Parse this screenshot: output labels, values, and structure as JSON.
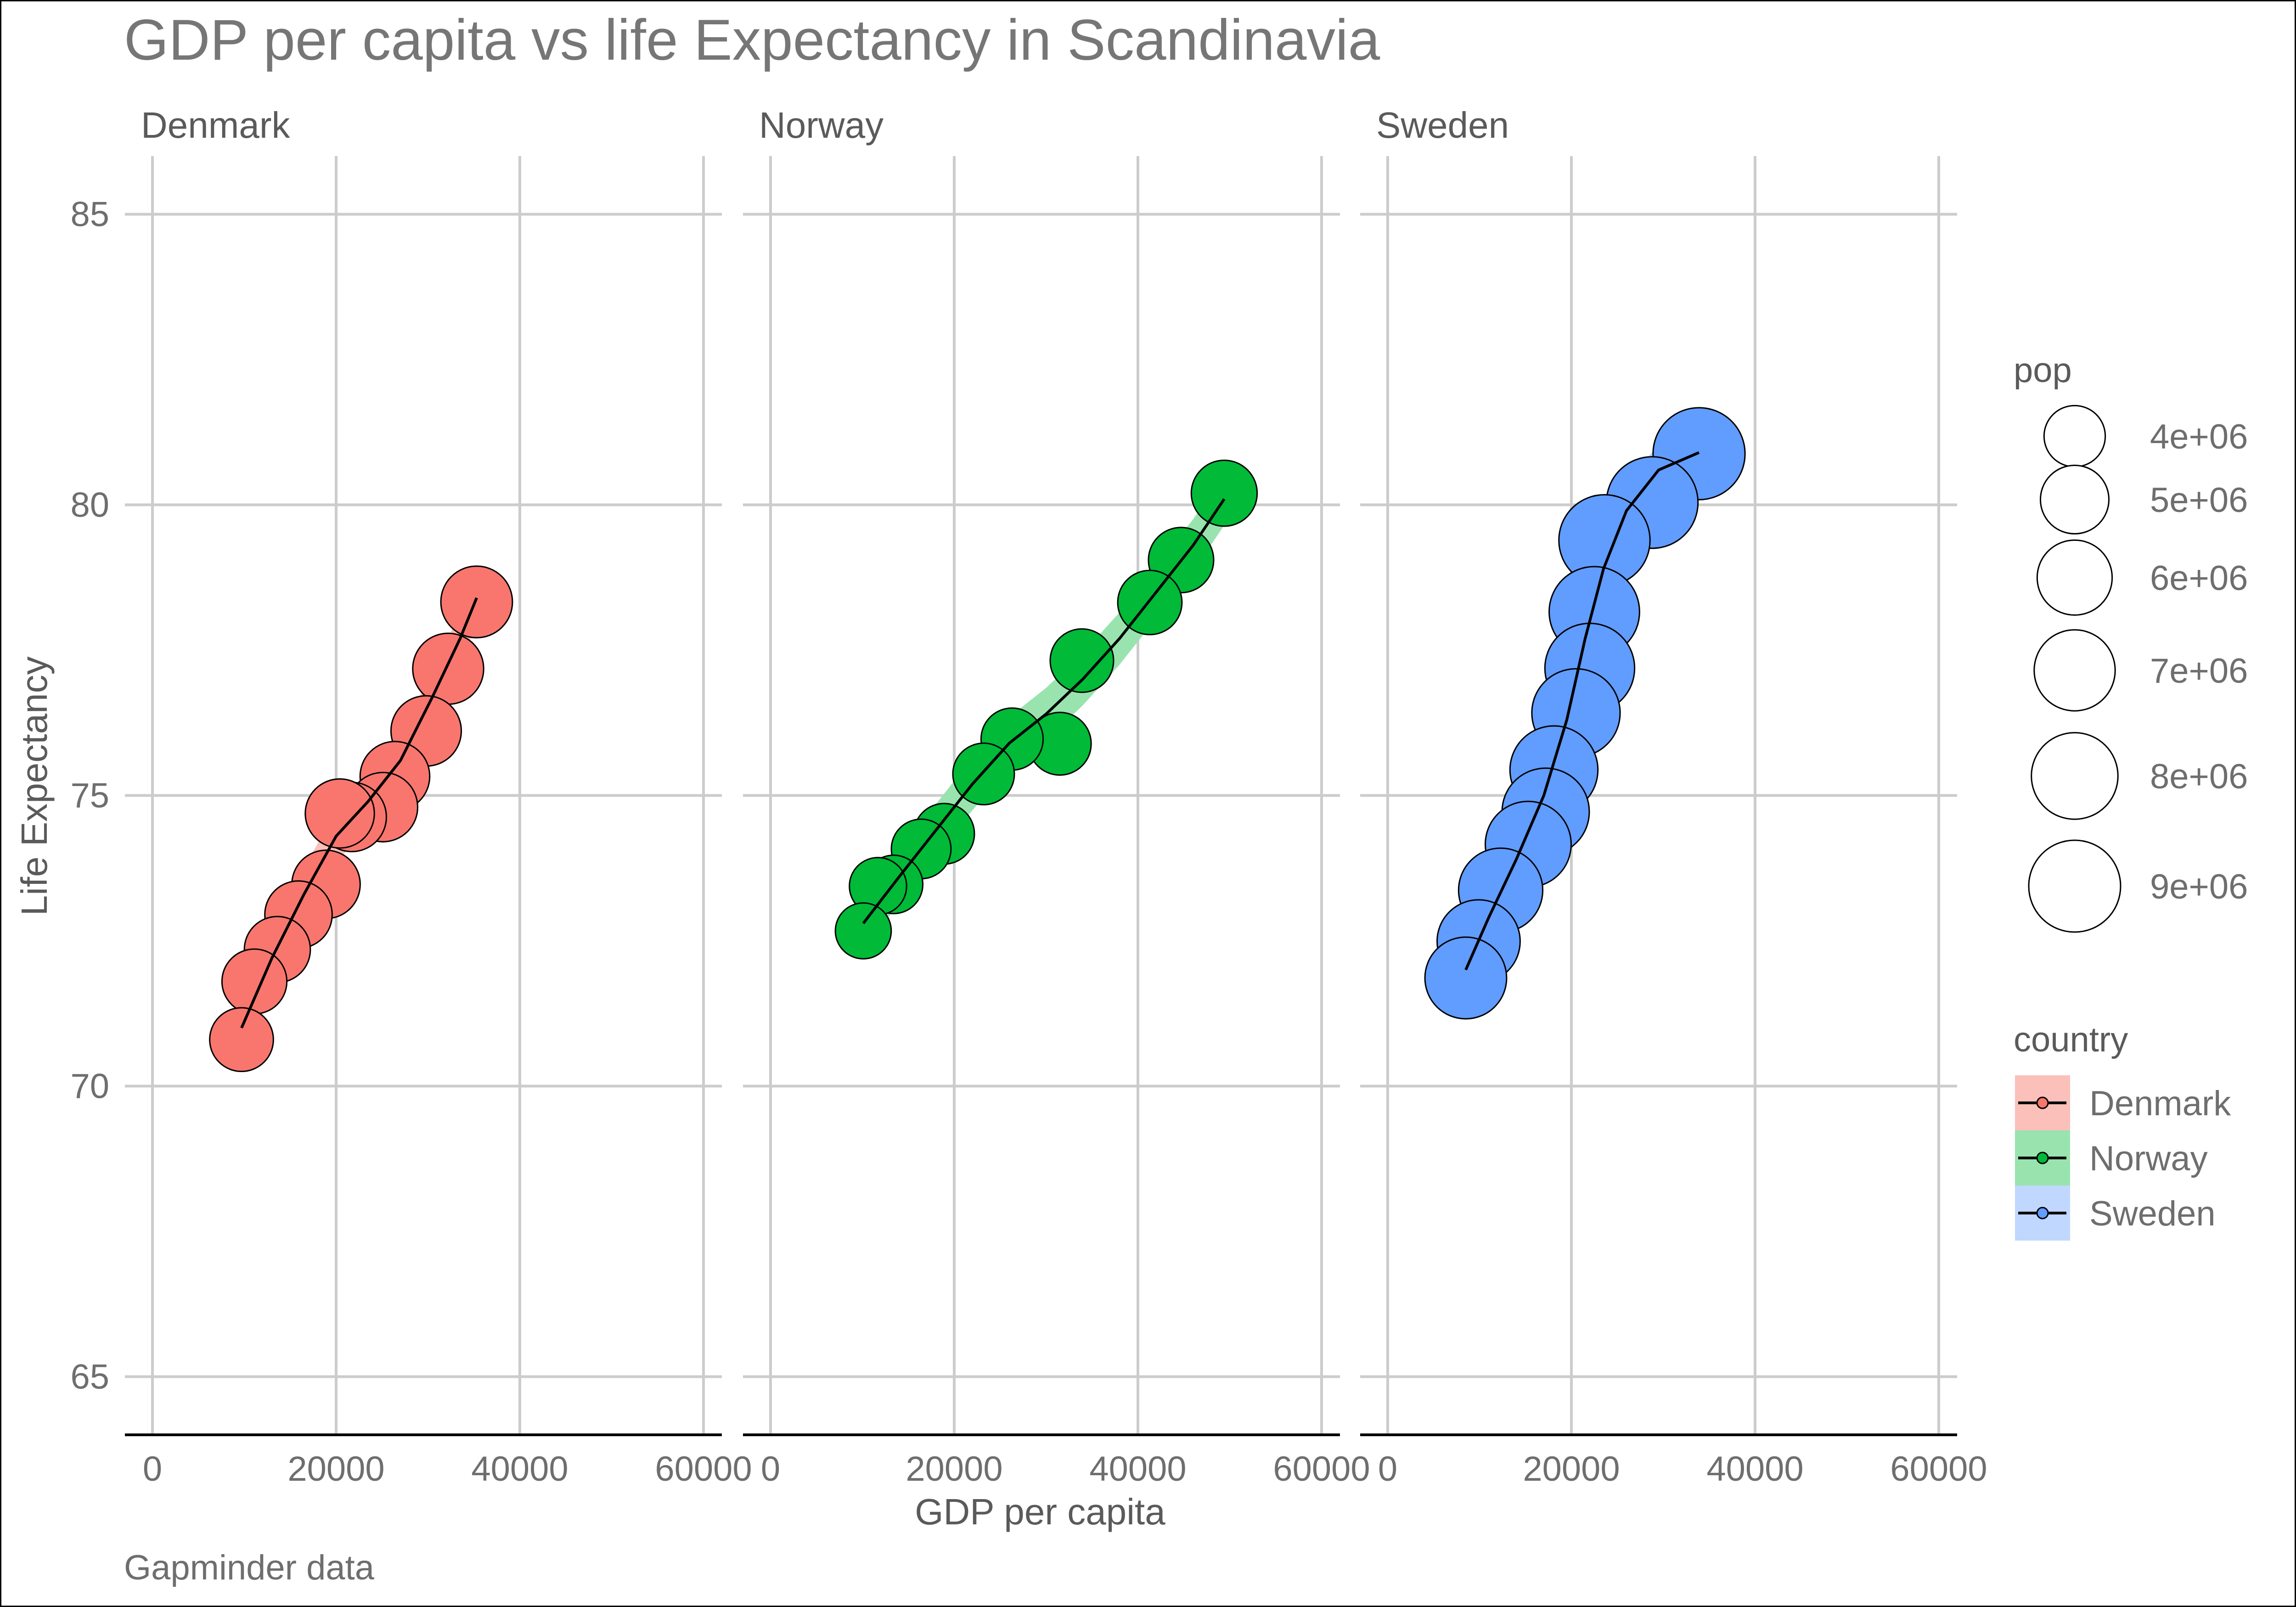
{
  "chart_data": {
    "type": "scatter",
    "title": "GDP per capita  vs life Expectancy in Scandinavia",
    "xlabel": "GDP per capita",
    "ylabel": "Life Expectancy",
    "caption": "Gapminder data",
    "xlim": [
      -3000,
      62000
    ],
    "ylim": [
      64,
      86
    ],
    "x_ticks": [
      "0",
      "20000",
      "40000",
      "60000"
    ],
    "y_ticks": [
      "65",
      "70",
      "75",
      "80",
      "85"
    ],
    "x_tick_values": [
      0,
      20000,
      40000,
      60000
    ],
    "y_tick_values": [
      65,
      70,
      75,
      80,
      85
    ],
    "grid": true,
    "facets": [
      {
        "name": "Denmark",
        "color": "#F8766D",
        "band_color": "#FBC0BA",
        "points": [
          {
            "x": 9700,
            "y": 70.8,
            "pop": 4330000.0
          },
          {
            "x": 11100,
            "y": 71.8,
            "pop": 4490000.0
          },
          {
            "x": 13600,
            "y": 72.35,
            "pop": 4650000.0
          },
          {
            "x": 15900,
            "y": 72.95,
            "pop": 4840000.0
          },
          {
            "x": 18900,
            "y": 73.47,
            "pop": 4980000.0
          },
          {
            "x": 20400,
            "y": 74.69,
            "pop": 5090000.0
          },
          {
            "x": 21700,
            "y": 74.63,
            "pop": 5120000.0
          },
          {
            "x": 25100,
            "y": 74.8,
            "pop": 5130000.0
          },
          {
            "x": 26400,
            "y": 75.33,
            "pop": 5170000.0
          },
          {
            "x": 29800,
            "y": 76.11,
            "pop": 5280000.0
          },
          {
            "x": 32200,
            "y": 77.18,
            "pop": 5370000.0
          },
          {
            "x": 35300,
            "y": 78.33,
            "pop": 5470000.0
          }
        ],
        "smooth": [
          [
            9700,
            71.0
          ],
          [
            13000,
            72.2
          ],
          [
            16500,
            73.3
          ],
          [
            20000,
            74.3
          ],
          [
            23500,
            74.9
          ],
          [
            27000,
            75.6
          ],
          [
            30500,
            76.7
          ],
          [
            33500,
            77.7
          ],
          [
            35300,
            78.4
          ]
        ]
      },
      {
        "name": "Norway",
        "color": "#00BA38",
        "band_color": "#99E3AF",
        "points": [
          {
            "x": 10100,
            "y": 72.67,
            "pop": 3330000.0
          },
          {
            "x": 11700,
            "y": 73.44,
            "pop": 3490000.0
          },
          {
            "x": 13400,
            "y": 73.47,
            "pop": 3640000.0
          },
          {
            "x": 16400,
            "y": 74.08,
            "pop": 3790000.0
          },
          {
            "x": 18900,
            "y": 74.34,
            "pop": 3920000.0
          },
          {
            "x": 23200,
            "y": 75.37,
            "pop": 4040000.0
          },
          {
            "x": 26300,
            "y": 75.97,
            "pop": 4110000.0
          },
          {
            "x": 31500,
            "y": 75.89,
            "pop": 4190000.0
          },
          {
            "x": 33900,
            "y": 77.32,
            "pop": 4290000.0
          },
          {
            "x": 41300,
            "y": 78.32,
            "pop": 4400000.0
          },
          {
            "x": 44700,
            "y": 79.05,
            "pop": 4540000.0
          },
          {
            "x": 49400,
            "y": 80.2,
            "pop": 4630000.0
          }
        ],
        "smooth": [
          [
            10100,
            72.8
          ],
          [
            14000,
            73.6
          ],
          [
            18000,
            74.4
          ],
          [
            22000,
            75.2
          ],
          [
            26000,
            75.9
          ],
          [
            30000,
            76.4
          ],
          [
            34000,
            77.0
          ],
          [
            38000,
            77.7
          ],
          [
            42000,
            78.5
          ],
          [
            46000,
            79.3
          ],
          [
            49400,
            80.1
          ]
        ]
      },
      {
        "name": "Sweden",
        "color": "#619CFF",
        "band_color": "#C0D7FF",
        "points": [
          {
            "x": 8500,
            "y": 71.86,
            "pop": 7120000.0
          },
          {
            "x": 9900,
            "y": 72.49,
            "pop": 7360000.0
          },
          {
            "x": 12300,
            "y": 73.37,
            "pop": 7560000.0
          },
          {
            "x": 15300,
            "y": 74.16,
            "pop": 7870000.0
          },
          {
            "x": 17200,
            "y": 74.72,
            "pop": 8120000.0
          },
          {
            "x": 18100,
            "y": 75.44,
            "pop": 8250000.0
          },
          {
            "x": 20500,
            "y": 76.42,
            "pop": 8320000.0
          },
          {
            "x": 22000,
            "y": 77.19,
            "pop": 8590000.0
          },
          {
            "x": 22500,
            "y": 78.16,
            "pop": 8720000.0
          },
          {
            "x": 23600,
            "y": 79.39,
            "pop": 8870000.0
          },
          {
            "x": 28800,
            "y": 80.04,
            "pop": 8950000.0
          },
          {
            "x": 33900,
            "y": 80.88,
            "pop": 9030000.0
          }
        ],
        "smooth": [
          [
            8500,
            72.0
          ],
          [
            11000,
            72.9
          ],
          [
            14000,
            73.9
          ],
          [
            17000,
            75.0
          ],
          [
            19500,
            76.3
          ],
          [
            21500,
            77.7
          ],
          [
            23500,
            78.9
          ],
          [
            26000,
            79.9
          ],
          [
            29500,
            80.6
          ],
          [
            33900,
            80.9
          ]
        ]
      }
    ],
    "legend": {
      "size_title": "pop",
      "size_items": [
        {
          "label": "4e+06",
          "value": 4000000.0
        },
        {
          "label": "5e+06",
          "value": 5000000.0
        },
        {
          "label": "6e+06",
          "value": 6000000.0
        },
        {
          "label": "7e+06",
          "value": 7000000.0
        },
        {
          "label": "8e+06",
          "value": 8000000.0
        },
        {
          "label": "9e+06",
          "value": 9000000.0
        }
      ],
      "color_title": "country",
      "color_items": [
        {
          "label": "Denmark",
          "color": "#F8766D",
          "band_color": "#FBC0BA"
        },
        {
          "label": "Norway",
          "color": "#00BA38",
          "band_color": "#99E3AF"
        },
        {
          "label": "Sweden",
          "color": "#619CFF",
          "band_color": "#C0D7FF"
        }
      ],
      "placement": "right"
    }
  }
}
